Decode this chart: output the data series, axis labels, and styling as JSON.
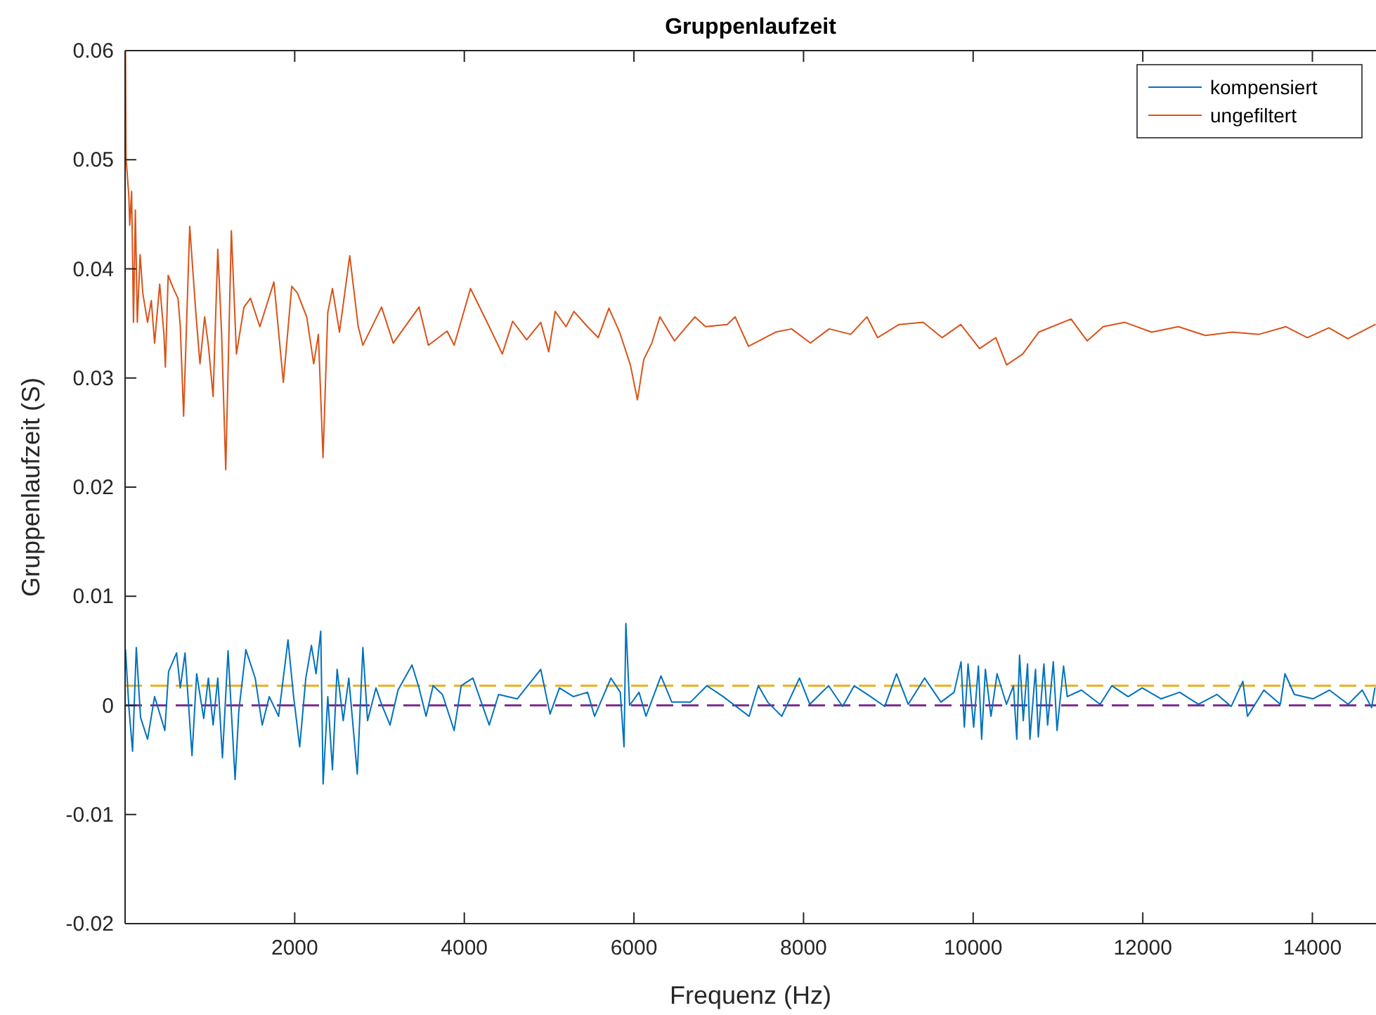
{
  "chart_data": {
    "type": "line",
    "title": "Gruppenlaufzeit",
    "xlabel": "Frequenz (Hz)",
    "ylabel": "Gruppenlaufzeit (S)",
    "xlim": [
      0,
      14750
    ],
    "ylim": [
      -0.02,
      0.06
    ],
    "xticks": [
      2000,
      4000,
      6000,
      8000,
      10000,
      12000,
      14000
    ],
    "yticks": [
      -0.02,
      -0.01,
      0,
      0.01,
      0.02,
      0.03,
      0.04,
      0.05,
      0.06
    ],
    "grid": false,
    "legend": "top right",
    "line_style": "solid",
    "marker": "none",
    "series": [
      {
        "name": "kompensiert",
        "color": "#0072bd",
        "x": [
          5,
          44,
          88,
          132,
          182,
          265,
          348,
          469,
          513,
          607,
          651,
          707,
          789,
          844,
          927,
          982,
          1038,
          1093,
          1148,
          1214,
          1297,
          1341,
          1424,
          1534,
          1617,
          1700,
          1810,
          1921,
          1987,
          2059,
          2131,
          2197,
          2252,
          2307,
          2335,
          2390,
          2445,
          2500,
          2572,
          2638,
          2738,
          2804,
          2859,
          2958,
          3024,
          3124,
          3218,
          3383,
          3466,
          3549,
          3632,
          3742,
          3880,
          3963,
          4101,
          4294,
          4404,
          4625,
          4901,
          5011,
          5122,
          5287,
          5453,
          5536,
          5729,
          5839,
          5883,
          5905,
          5949,
          6060,
          6142,
          6319,
          6446,
          6667,
          6860,
          7053,
          7358,
          7467,
          7577,
          7743,
          7952,
          8074,
          8295,
          8460,
          8598,
          8792,
          8957,
          9096,
          9234,
          9427,
          9620,
          9775,
          9857,
          9896,
          9940,
          10006,
          10062,
          10100,
          10144,
          10210,
          10282,
          10393,
          10475,
          10514,
          10547,
          10591,
          10641,
          10669,
          10735,
          10768,
          10834,
          10878,
          10945,
          10989,
          11066,
          11110,
          11276,
          11497,
          11635,
          11828,
          11993,
          12214,
          12435,
          12656,
          12876,
          13042,
          13180,
          13235,
          13428,
          13622,
          13677,
          13787,
          14008,
          14201,
          14422,
          14588,
          14698,
          14737
        ],
        "values": [
          0.0051,
          -0.0001,
          -0.0042,
          0.0053,
          -0.0011,
          -0.0031,
          0.0008,
          -0.0023,
          0.0031,
          0.0048,
          0.0016,
          0.0048,
          -0.0046,
          0.0029,
          -0.0012,
          0.0025,
          -0.0018,
          0.0025,
          -0.0048,
          0.005,
          -0.0068,
          -0.0005,
          0.0051,
          0.0025,
          -0.0018,
          0.0008,
          -0.001,
          0.006,
          0.0008,
          -0.0038,
          0.0025,
          0.0055,
          0.0029,
          0.0068,
          -0.0072,
          0.0008,
          -0.0059,
          0.0033,
          -0.0014,
          0.0025,
          -0.0063,
          0.0053,
          -0.0014,
          0.0016,
          0.0001,
          -0.0018,
          0.0014,
          0.0037,
          0.0016,
          -0.001,
          0.0018,
          0.001,
          -0.0023,
          0.0018,
          0.0025,
          -0.0018,
          0.001,
          0.0006,
          0.0033,
          -0.0008,
          0.0016,
          0.0008,
          0.0012,
          -0.001,
          0.0025,
          0.0012,
          -0.0038,
          0.0075,
          0,
          0.0012,
          -0.001,
          0.0027,
          0.0003,
          0.0003,
          0.0018,
          0.0008,
          -0.001,
          0.0018,
          0.0003,
          -0.001,
          0.0025,
          0.0001,
          0.0018,
          -0.0001,
          0.0018,
          0.0008,
          -0.0001,
          0.0029,
          0.0001,
          0.0025,
          0.0003,
          0.0012,
          0.004,
          -0.002,
          0.0038,
          -0.002,
          0.0036,
          -0.0031,
          0.0033,
          -0.001,
          0.0029,
          0.0001,
          0.0018,
          -0.0031,
          0.0046,
          -0.0014,
          0.0038,
          -0.0031,
          0.0033,
          -0.0029,
          0.0038,
          -0.0018,
          0.004,
          -0.0023,
          0.0036,
          0.0008,
          0.0014,
          0.0001,
          0.0018,
          0.0008,
          0.0016,
          0.0006,
          0.0012,
          0.0001,
          0.001,
          -0.0001,
          0.0022,
          -0.001,
          0.0014,
          0.0001,
          0.0029,
          0.001,
          0.0006,
          0.0014,
          0.0001,
          0.0014,
          -0.0002,
          0.0016
        ]
      },
      {
        "name": "ungefiltert",
        "color": "#d95319",
        "x": [
          5,
          11,
          44,
          55,
          77,
          99,
          121,
          144,
          177,
          210,
          265,
          309,
          348,
          408,
          458,
          475,
          508,
          569,
          624,
          651,
          690,
          762,
          834,
          883,
          938,
          982,
          1038,
          1093,
          1137,
          1187,
          1253,
          1313,
          1402,
          1479,
          1589,
          1755,
          1866,
          1965,
          2031,
          2142,
          2224,
          2279,
          2334,
          2390,
          2445,
          2528,
          2649,
          2749,
          2804,
          3024,
          3162,
          3466,
          3576,
          3797,
          3880,
          4073,
          4294,
          4448,
          4570,
          4735,
          4901,
          4995,
          5071,
          5199,
          5293,
          5452,
          5579,
          5705,
          5831,
          5958,
          6041,
          6116,
          6211,
          6306,
          6478,
          6718,
          6846,
          7099,
          7194,
          7351,
          7669,
          7859,
          8081,
          8303,
          8556,
          8747,
          8873,
          9126,
          9411,
          9633,
          9854,
          10076,
          10267,
          10394,
          10585,
          10773,
          11154,
          11344,
          11533,
          11788,
          12104,
          12420,
          12738,
          13055,
          13371,
          13689,
          13940,
          14195,
          14417,
          14740
        ],
        "values": [
          0.06,
          0.0502,
          0.0467,
          0.044,
          0.0471,
          0.0351,
          0.0454,
          0.0351,
          0.0413,
          0.0377,
          0.0351,
          0.0371,
          0.0332,
          0.0386,
          0.034,
          0.031,
          0.0394,
          0.0382,
          0.0373,
          0.0347,
          0.0265,
          0.0439,
          0.036,
          0.0313,
          0.0356,
          0.033,
          0.0283,
          0.0418,
          0.0343,
          0.0216,
          0.0435,
          0.0322,
          0.0365,
          0.0373,
          0.0347,
          0.0388,
          0.0296,
          0.0384,
          0.0378,
          0.0356,
          0.0313,
          0.034,
          0.0227,
          0.036,
          0.0382,
          0.0342,
          0.0412,
          0.0347,
          0.033,
          0.0365,
          0.0332,
          0.0365,
          0.033,
          0.0343,
          0.033,
          0.0382,
          0.0347,
          0.0322,
          0.0352,
          0.0335,
          0.0351,
          0.0324,
          0.0361,
          0.0347,
          0.0361,
          0.0347,
          0.0337,
          0.0364,
          0.0342,
          0.0312,
          0.028,
          0.0317,
          0.0332,
          0.0356,
          0.0334,
          0.0356,
          0.0347,
          0.0349,
          0.0356,
          0.0329,
          0.0342,
          0.0345,
          0.0332,
          0.0345,
          0.034,
          0.0356,
          0.0337,
          0.0349,
          0.0351,
          0.0337,
          0.0349,
          0.0327,
          0.0337,
          0.0312,
          0.0322,
          0.0342,
          0.0354,
          0.0334,
          0.0347,
          0.0351,
          0.0342,
          0.0347,
          0.0339,
          0.0342,
          0.034,
          0.0347,
          0.0337,
          0.0346,
          0.0336,
          0.0349
        ]
      }
    ],
    "ref_lines": [
      {
        "axis": "y",
        "value": 0.0018,
        "color": "#edb120",
        "line_style": "dashed"
      },
      {
        "axis": "y",
        "value": 0,
        "color": "#7e2f8e",
        "line_style": "dashed"
      }
    ]
  }
}
